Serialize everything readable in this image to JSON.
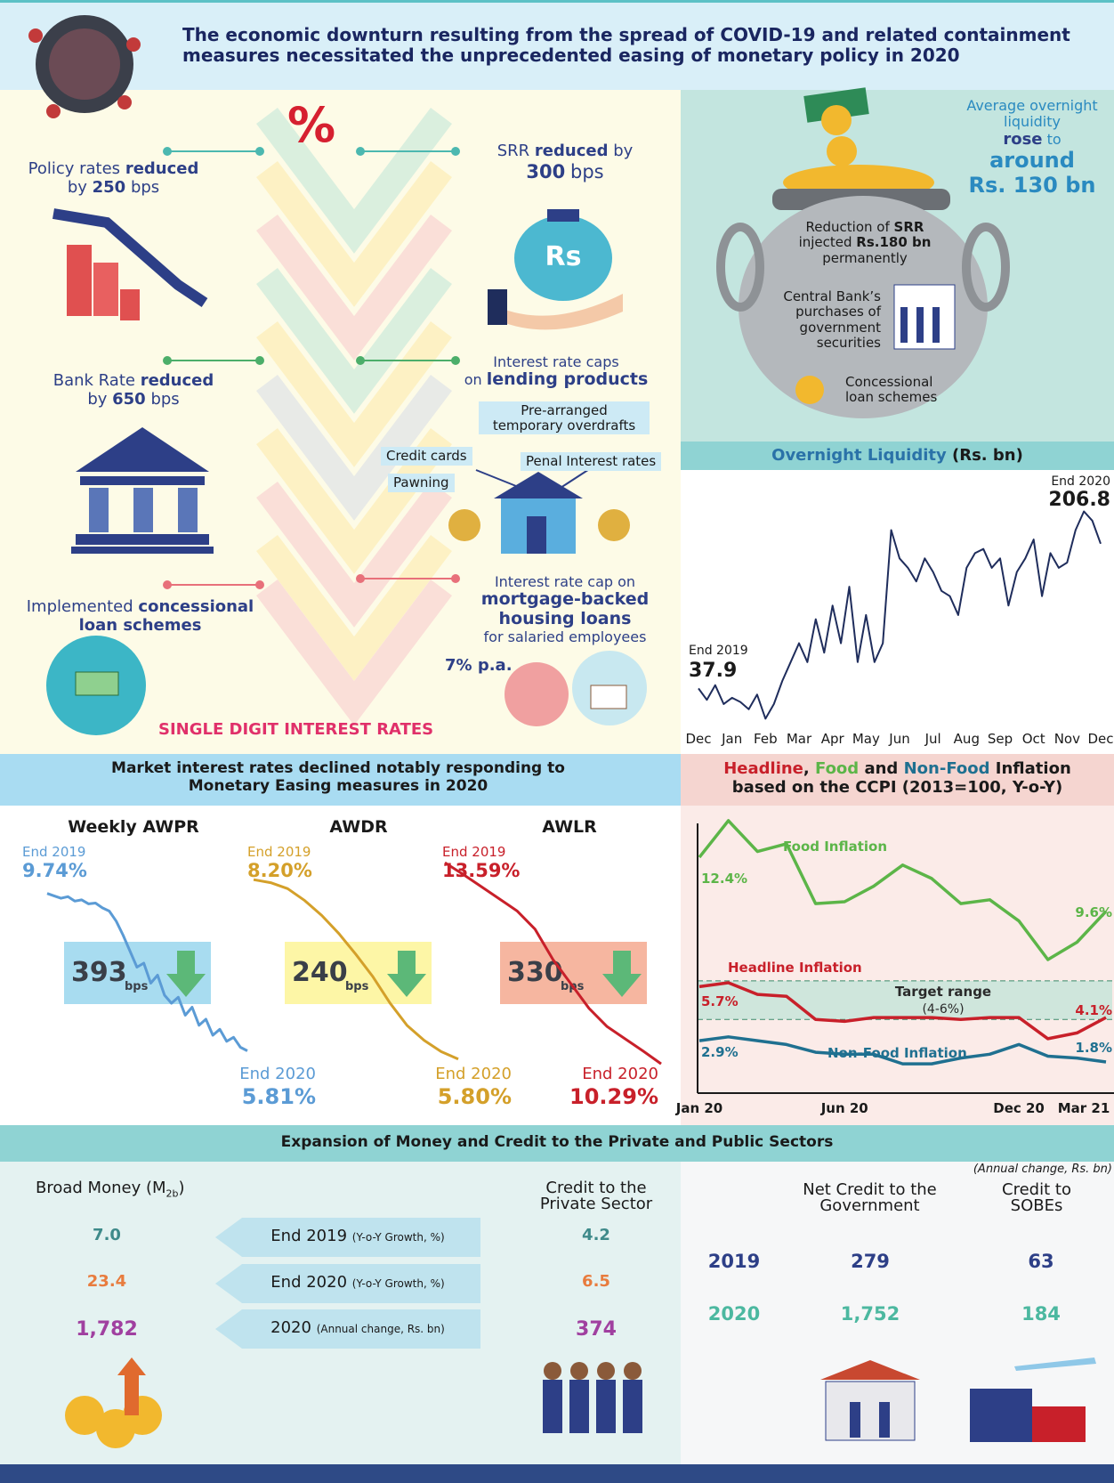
{
  "header": {
    "title": "The economic downturn resulting from the spread of COVID-19 and related containment measures necessitated the unprecedented easing of monetary policy in 2020"
  },
  "measures": {
    "symbol": "%",
    "policy_rates": [
      "Policy rates",
      "reduced",
      "by",
      "250",
      "bps"
    ],
    "srr": [
      "SRR",
      "reduced",
      "by",
      "300",
      "bps"
    ],
    "bank_rate": [
      "Bank Rate",
      "reduced",
      "by",
      "650",
      "bps"
    ],
    "lending_caps": [
      "Interest rate caps",
      "on",
      "lending products"
    ],
    "products": [
      "Pre-arranged temporary overdrafts",
      "Credit cards",
      "Penal Interest rates",
      "Pawning"
    ],
    "concessional": [
      "Implemented",
      "concessional loan schemes"
    ],
    "mortgage": [
      "Interest rate cap on",
      "mortgage-backed housing loans",
      "for salaried employees",
      "7% p.a."
    ],
    "footer": "SINGLE DIGIT INTEREST RATES",
    "icon_currency": "Rs"
  },
  "liquidity_pot": {
    "headline": [
      "Average overnight liquidity",
      "rose",
      "to",
      "around",
      "Rs. 130 bn"
    ],
    "srr": [
      "Reduction of",
      "SRR",
      "injected",
      "Rs.180 bn",
      "permanently"
    ],
    "purchases": "Central Bank’s purchases of government securities",
    "concessional": "Concessional loan schemes"
  },
  "market_rates": {
    "title": "Market interest rates declined notably responding to Monetary Easing measures in 2020"
  },
  "money_credit": {
    "title": "Expansion of Money and Credit to the Private and Public Sectors",
    "broad_money": [
      "Broad Money (M",
      "2b",
      ")"
    ],
    "private_credit": "Credit to the Private Sector",
    "rows": [
      {
        "broad": "7.0",
        "period": "End 2019",
        "note": "(Y-o-Y Growth, %)",
        "private": "4.2"
      },
      {
        "broad": "23.4",
        "period": "End 2020",
        "note": "(Y-o-Y Growth, %)",
        "private": "6.5"
      },
      {
        "broad": "1,782",
        "period": "2020",
        "note": "(Annual change, Rs. bn)",
        "private": "374"
      }
    ],
    "public_note": "(Annual change, Rs. bn)",
    "government": "Net Credit to the Government",
    "sobe": "Credit to SOBEs",
    "public_rows": [
      {
        "year": "2019",
        "government": "279",
        "sobe": "63"
      },
      {
        "year": "2020",
        "government": "1,752",
        "sobe": "184"
      }
    ]
  },
  "chart_data": [
    {
      "type": "line",
      "title": "Overnight Liquidity",
      "subtitle": "(Rs. bn)",
      "start_caption": "End 2019",
      "end_caption": "End 2020",
      "xlim": [
        0,
        12
      ],
      "ylim": [
        0,
        220
      ],
      "xticks": [
        {
          "value": 0,
          "label": "Dec"
        },
        {
          "value": 1,
          "label": "Jan"
        },
        {
          "value": 2,
          "label": "Feb"
        },
        {
          "value": 3,
          "label": "Mar"
        },
        {
          "value": 4,
          "label": "Apr"
        },
        {
          "value": 5,
          "label": "May"
        },
        {
          "value": 6,
          "label": "Jun"
        },
        {
          "value": 7,
          "label": "Jul"
        },
        {
          "value": 8,
          "label": "Aug"
        },
        {
          "value": 9,
          "label": "Sep"
        },
        {
          "value": 10,
          "label": "Oct"
        },
        {
          "value": 11,
          "label": "Nov"
        },
        {
          "value": 12,
          "label": "Dec"
        }
      ],
      "series": [
        {
          "color": "#1f2d5c",
          "x": [
            0,
            0.25,
            0.5,
            0.75,
            1,
            1.25,
            1.5,
            1.75,
            2,
            2.25,
            2.5,
            2.75,
            3,
            3.25,
            3.5,
            3.75,
            4,
            4.25,
            4.5,
            4.75,
            5,
            5.25,
            5.5,
            5.75,
            6,
            6.25,
            6.5,
            6.75,
            7,
            7.25,
            7.5,
            7.75,
            8,
            8.25,
            8.5,
            8.75,
            9,
            9.25,
            9.5,
            9.75,
            10,
            10.25,
            10.5,
            10.75,
            11,
            11.25,
            11.5,
            11.75,
            12
          ],
          "values": [
            37.9,
            27,
            41,
            23,
            29,
            25,
            18,
            32,
            9,
            23,
            45,
            63,
            81,
            63,
            104,
            72,
            117,
            81,
            135,
            63,
            108,
            63,
            81,
            189,
            162,
            153,
            140,
            162,
            149,
            131,
            126,
            108,
            153,
            167,
            171,
            153,
            162,
            117,
            149,
            162,
            180,
            126,
            167,
            153,
            158,
            189,
            206.8,
            198,
            176
          ]
        }
      ]
    },
    {
      "type": "line",
      "title": "Weekly AWPR",
      "start_caption": "End 2019",
      "end_caption": "End 2020",
      "change": 393,
      "change_unit": "bps",
      "box_color": "#a8dcf0",
      "ylim": [
        5,
        10
      ],
      "series": [
        {
          "color": "#5b9bd5",
          "values": [
            9.74,
            9.68,
            9.62,
            9.66,
            9.55,
            9.58,
            9.48,
            9.5,
            9.38,
            9.3,
            9.05,
            8.7,
            8.3,
            7.9,
            8.0,
            7.5,
            7.7,
            7.2,
            7.0,
            7.15,
            6.7,
            6.9,
            6.45,
            6.6,
            6.2,
            6.35,
            6.05,
            6.15,
            5.9,
            5.81
          ],
          "value_labels": [
            "9.74%",
            null,
            null,
            null,
            null,
            null,
            null,
            null,
            null,
            null,
            null,
            null,
            null,
            null,
            null,
            null,
            null,
            null,
            null,
            null,
            null,
            null,
            null,
            null,
            null,
            null,
            null,
            null,
            null,
            "5.81%"
          ]
        }
      ]
    },
    {
      "type": "line",
      "title": "AWDR",
      "start_caption": "End 2019",
      "end_caption": "End 2020",
      "change": 240,
      "change_unit": "bps",
      "box_color": "#fdf6a6",
      "ylim": [
        5.5,
        8.5
      ],
      "series": [
        {
          "color": "#d4a02a",
          "values": [
            8.2,
            8.16,
            8.08,
            7.92,
            7.72,
            7.48,
            7.2,
            6.9,
            6.55,
            6.25,
            6.05,
            5.9,
            5.8
          ],
          "value_labels": [
            "8.20%",
            null,
            null,
            null,
            null,
            null,
            null,
            null,
            null,
            null,
            null,
            null,
            "5.80%"
          ]
        }
      ]
    },
    {
      "type": "line",
      "title": "AWLR",
      "start_caption": "End 2019",
      "end_caption": "End 2020",
      "change": 330,
      "change_unit": "bps",
      "box_color": "#f6b6a0",
      "ylim": [
        10,
        14
      ],
      "series": [
        {
          "color": "#c8202a",
          "values": [
            13.59,
            13.4,
            13.2,
            13.0,
            12.8,
            12.5,
            12.0,
            11.6,
            11.2,
            10.9,
            10.7,
            10.5,
            10.29
          ],
          "value_labels": [
            "13.59%",
            null,
            null,
            null,
            null,
            null,
            null,
            null,
            null,
            null,
            null,
            null,
            "10.29%"
          ]
        }
      ]
    },
    {
      "type": "line",
      "title": [
        "Headline",
        "Food",
        "and",
        "Non-Food",
        "Inflation"
      ],
      "subtitle": "based on the CCPI (2013=100, Y-o-Y)",
      "ylim": [
        0,
        16
      ],
      "categories": [
        "Jan 20",
        null,
        null,
        null,
        null,
        "Jun 20",
        null,
        null,
        null,
        null,
        null,
        "Dec 20",
        null,
        null,
        "Mar 21"
      ],
      "target_range": {
        "label": "Target range",
        "range_label": "(4-6%)",
        "values": [
          4,
          6
        ]
      },
      "series": [
        {
          "name": "Food Inflation",
          "color": "#5cb548",
          "values": [
            12.4,
            14.3,
            12.7,
            13.1,
            10.0,
            10.1,
            10.9,
            12.0,
            11.3,
            10.0,
            10.2,
            9.1,
            7.1,
            8.0,
            9.6
          ],
          "value_labels": [
            "12.4%",
            null,
            null,
            null,
            null,
            null,
            null,
            null,
            null,
            null,
            null,
            null,
            null,
            null,
            "9.6%"
          ]
        },
        {
          "name": "Headline Inflation",
          "color": "#c8202a",
          "values": [
            5.7,
            5.9,
            5.3,
            5.2,
            4.0,
            3.9,
            4.1,
            4.1,
            4.1,
            4.0,
            4.1,
            4.1,
            3.0,
            3.3,
            4.1
          ],
          "value_labels": [
            "5.7%",
            null,
            null,
            null,
            null,
            null,
            null,
            null,
            null,
            null,
            null,
            null,
            null,
            null,
            "4.1%"
          ]
        },
        {
          "name": "Non-Food Inflation",
          "color": "#1f7090",
          "values": [
            2.9,
            3.1,
            2.9,
            2.7,
            2.3,
            2.2,
            2.2,
            1.7,
            1.7,
            2.0,
            2.2,
            2.7,
            2.1,
            2.0,
            1.8
          ],
          "value_labels": [
            "2.9%",
            null,
            null,
            null,
            null,
            null,
            null,
            null,
            null,
            null,
            null,
            null,
            null,
            null,
            "1.8%"
          ]
        }
      ]
    }
  ]
}
